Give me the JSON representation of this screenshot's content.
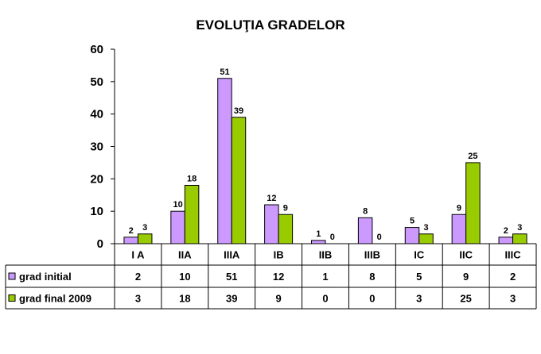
{
  "chart_data": {
    "type": "bar",
    "title": "EVOLUŢIA GRADELOR",
    "categories": [
      "I A",
      "IIA",
      "IIIA",
      "IB",
      "IIB",
      "IIIB",
      "IC",
      "IIC",
      "IIIC"
    ],
    "series": [
      {
        "name": "grad initial",
        "values": [
          2,
          10,
          51,
          12,
          1,
          8,
          5,
          9,
          2
        ],
        "color": "#cc99ff"
      },
      {
        "name": "grad final 2009",
        "values": [
          3,
          18,
          39,
          9,
          0,
          0,
          3,
          25,
          3
        ],
        "color": "#99cc00"
      }
    ],
    "ylim": [
      0,
      60
    ],
    "yticks": [
      0,
      10,
      20,
      30,
      40,
      50,
      60
    ],
    "grid": false,
    "legend": "data-table"
  }
}
